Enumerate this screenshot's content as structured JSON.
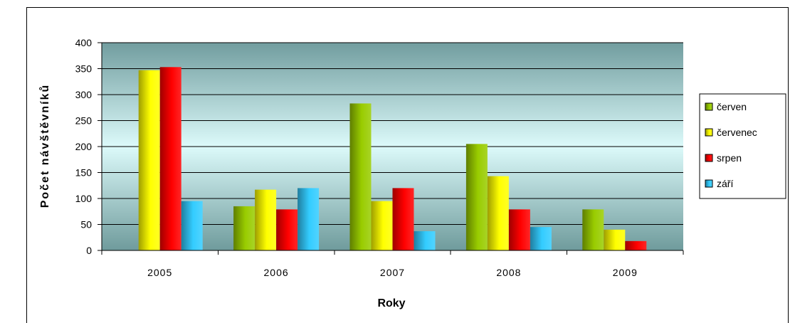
{
  "chart_data": {
    "type": "bar",
    "xlabel": "Roky",
    "ylabel": "Počet návštěvníků",
    "categories": [
      "2005",
      "2006",
      "2007",
      "2008",
      "2009"
    ],
    "series": [
      {
        "name": "červen",
        "color": "#99cc00",
        "values": [
          0,
          85,
          283,
          205,
          79
        ]
      },
      {
        "name": "červenec",
        "color": "#ffff00",
        "values": [
          347,
          117,
          95,
          143,
          40
        ]
      },
      {
        "name": "srpen",
        "color": "#ff0000",
        "values": [
          353,
          79,
          120,
          79,
          18
        ]
      },
      {
        "name": "září",
        "color": "#33ccff",
        "values": [
          95,
          120,
          37,
          45,
          0
        ]
      }
    ],
    "ylim": [
      0,
      400
    ],
    "y_ticks": [
      0,
      50,
      100,
      150,
      200,
      250,
      300,
      350,
      400
    ],
    "grid": true,
    "legend_position": "right"
  }
}
